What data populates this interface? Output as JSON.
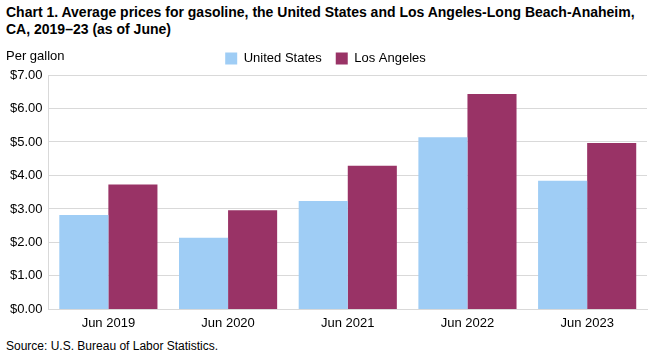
{
  "chart_data": {
    "type": "bar",
    "title": "Chart 1. Average prices for gasoline, the United States and Los Angeles-Long Beach-Anaheim, CA, 2019–23 (as of June)",
    "y_label": "Per gallon",
    "source": "Source: U.S. Bureau of Labor Statistics.",
    "categories": [
      "Jun 2019",
      "Jun 2020",
      "Jun 2021",
      "Jun 2022",
      "Jun 2023"
    ],
    "series": [
      {
        "name": "United States",
        "color": "#9fcdf5",
        "values": [
          2.82,
          2.14,
          3.24,
          5.14,
          3.84
        ]
      },
      {
        "name": "Los Angeles",
        "color": "#993366",
        "values": [
          3.73,
          2.96,
          4.29,
          6.43,
          4.97
        ]
      }
    ],
    "ylim": [
      0,
      7
    ],
    "yticks": [
      {
        "value": 0,
        "label": "$0.00"
      },
      {
        "value": 1,
        "label": "$1.00"
      },
      {
        "value": 2,
        "label": "$2.00"
      },
      {
        "value": 3,
        "label": "$3.00"
      },
      {
        "value": 4,
        "label": "$4.00"
      },
      {
        "value": 5,
        "label": "$5.00"
      },
      {
        "value": 6,
        "label": "$6.00"
      },
      {
        "value": 7,
        "label": "$7.00"
      }
    ],
    "grid": true,
    "legend": "top",
    "data_labels": false
  }
}
